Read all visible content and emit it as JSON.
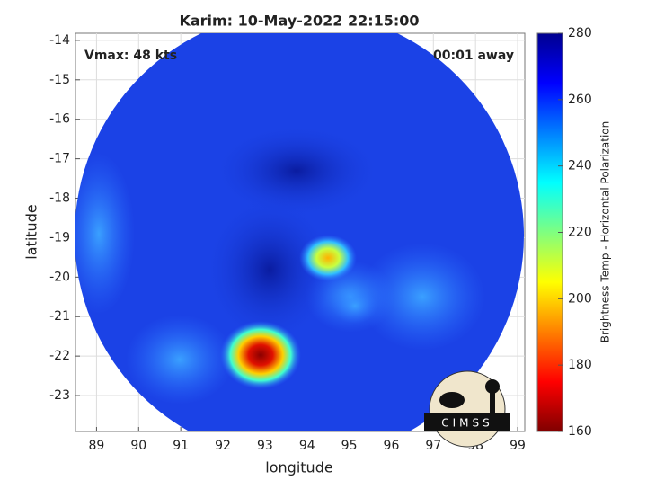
{
  "chart_data": {
    "type": "swath",
    "title": "Karim: 10-May-2022 22:15:00",
    "annotations": [
      "Vmax: 48 kts",
      "00:01 away"
    ],
    "xlabel": "longitude",
    "ylabel": "latitude",
    "xlim": [
      88.5,
      99.17
    ],
    "xticks": [
      89,
      90,
      91,
      92,
      93,
      94,
      95,
      96,
      97,
      98,
      99
    ],
    "ylim": [
      -23.91,
      -13.82
    ],
    "yticks": [
      -14,
      -15,
      -16,
      -17,
      -18,
      -19,
      -20,
      -21,
      -22,
      -23
    ],
    "colorbar": {
      "label": "Brightness Temp - Horizontal Polarization",
      "colormap": "jet",
      "clim": [
        160,
        280
      ],
      "ticks": [
        160,
        180,
        200,
        220,
        240,
        260,
        280
      ]
    },
    "logo": "CIMSS"
  }
}
